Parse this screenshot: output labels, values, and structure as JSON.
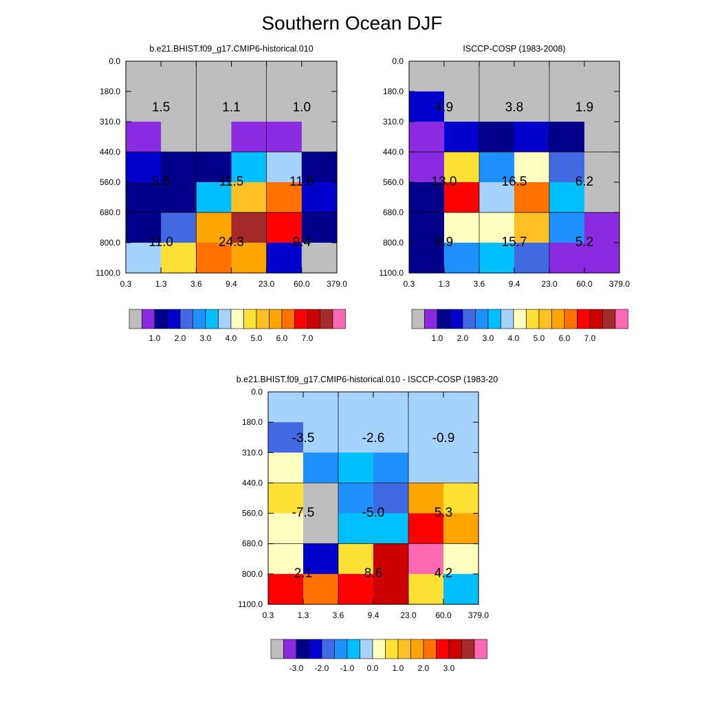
{
  "figure": {
    "title": "Southern Ocean DJF"
  },
  "chart_data": [
    {
      "type": "heatmap",
      "title": "b.e21.BHIST.f09_g17.CMIP6-historical.010",
      "xticks": [
        "0.3",
        "1.3",
        "3.6",
        "9.4",
        "23.0",
        "60.0",
        "379.0"
      ],
      "yticks": [
        "0.0",
        "180.0",
        "310.0",
        "440.0",
        "560.0",
        "680.0",
        "800.0",
        "1100.0"
      ],
      "grid": true,
      "cells": [
        [
          0,
          0,
          0,
          0,
          0,
          0
        ],
        [
          0,
          0,
          0,
          0,
          0,
          0
        ],
        [
          1,
          0,
          0,
          1,
          1,
          0
        ],
        [
          3,
          2,
          2,
          6,
          7,
          2
        ],
        [
          2,
          2,
          6,
          10,
          12,
          3
        ],
        [
          2,
          4,
          11,
          15,
          13,
          2
        ],
        [
          7,
          9,
          12,
          11,
          3,
          0
        ]
      ],
      "block_values": [
        [
          "1.5",
          "1.1",
          "1.0"
        ],
        [
          "5.5",
          "11.5",
          "11.6"
        ],
        [
          "11.0",
          "24.3",
          "9.4"
        ]
      ],
      "colorbar": {
        "colors": [
          "#bebebe",
          "#8a2be2",
          "#00008b",
          "#0000cd",
          "#4169e1",
          "#1e90ff",
          "#00bfff",
          "#a6d2ff",
          "#ffffc0",
          "#ffe135",
          "#ffc125",
          "#ffa500",
          "#ff7200",
          "#ff0000",
          "#cd0000",
          "#a52a2a",
          "#ff69b4"
        ],
        "labels": [
          "1.0",
          "2.0",
          "3.0",
          "4.0",
          "5.0",
          "6.0",
          "7.0"
        ]
      }
    },
    {
      "type": "heatmap",
      "title": "ISCCP-COSP (1983-2008)",
      "xticks": [
        "0.3",
        "1.3",
        "3.6",
        "9.4",
        "23.0",
        "60.0",
        "379.0"
      ],
      "yticks": [
        "0.0",
        "180.0",
        "310.0",
        "440.0",
        "560.0",
        "680.0",
        "800.0",
        "1100.0"
      ],
      "grid": true,
      "cells": [
        [
          0,
          0,
          0,
          0,
          0,
          0
        ],
        [
          3,
          0,
          0,
          0,
          0,
          0
        ],
        [
          1,
          3,
          2,
          3,
          2,
          0
        ],
        [
          1,
          9,
          5,
          8,
          4,
          0
        ],
        [
          2,
          13,
          7,
          12,
          6,
          0
        ],
        [
          2,
          8,
          8,
          10,
          5,
          1
        ],
        [
          2,
          5,
          6,
          4,
          1,
          1
        ]
      ],
      "block_values": [
        [
          "4.9",
          "3.8",
          "1.9"
        ],
        [
          "13.0",
          "16.5",
          "6.2"
        ],
        [
          "8.9",
          "15.7",
          "5.2"
        ]
      ],
      "colorbar": {
        "colors": [
          "#bebebe",
          "#8a2be2",
          "#00008b",
          "#0000cd",
          "#4169e1",
          "#1e90ff",
          "#00bfff",
          "#a6d2ff",
          "#ffffc0",
          "#ffe135",
          "#ffc125",
          "#ffa500",
          "#ff7200",
          "#ff0000",
          "#cd0000",
          "#a52a2a",
          "#ff69b4"
        ],
        "labels": [
          "1.0",
          "2.0",
          "3.0",
          "4.0",
          "5.0",
          "6.0",
          "7.0"
        ]
      }
    },
    {
      "type": "heatmap",
      "title": "b.e21.BHIST.f09_g17.CMIP6-historical.010 - ISCCP-COSP (1983-2008)",
      "xticks": [
        "0.3",
        "1.3",
        "3.6",
        "9.4",
        "23.0",
        "60.0",
        "379.0"
      ],
      "yticks": [
        "0.0",
        "180.0",
        "310.0",
        "440.0",
        "560.0",
        "680.0",
        "800.0",
        "1100.0"
      ],
      "grid": true,
      "cells": [
        [
          7,
          7,
          7,
          7,
          7,
          7
        ],
        [
          4,
          7,
          7,
          7,
          7,
          7
        ],
        [
          8,
          5,
          6,
          5,
          7,
          7
        ],
        [
          9,
          0,
          5,
          4,
          11,
          9
        ],
        [
          8,
          0,
          6,
          6,
          13,
          11
        ],
        [
          8,
          3,
          9,
          14,
          16,
          8
        ],
        [
          13,
          12,
          13,
          14,
          9,
          6
        ]
      ],
      "block_values": [
        [
          "-3.5",
          "-2.6",
          "-0.9"
        ],
        [
          "-7.5",
          "-5.0",
          "5.3"
        ],
        [
          "2.1",
          "8.6",
          "4.2"
        ]
      ],
      "colorbar": {
        "colors": [
          "#bebebe",
          "#8a2be2",
          "#00008b",
          "#0000cd",
          "#4169e1",
          "#1e90ff",
          "#00bfff",
          "#a6d2ff",
          "#ffffc0",
          "#ffe135",
          "#ffc125",
          "#ffa500",
          "#ff7200",
          "#ff0000",
          "#cd0000",
          "#a52a2a",
          "#ff69b4"
        ],
        "labels": [
          "-3.0",
          "-2.0",
          "-1.0",
          "0.0",
          "1.0",
          "2.0",
          "3.0"
        ]
      }
    }
  ]
}
